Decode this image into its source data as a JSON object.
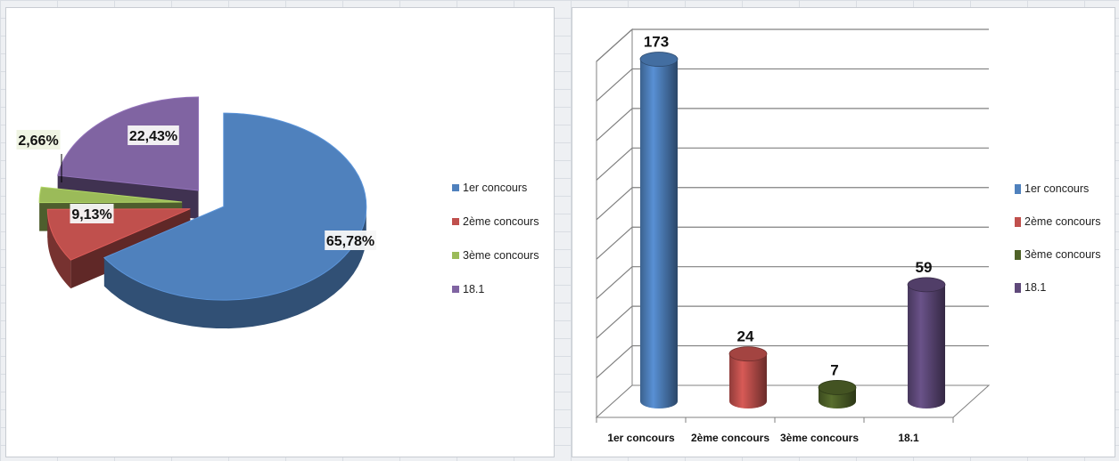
{
  "chart_data": [
    {
      "type": "pie",
      "categories": [
        "1er concours",
        "2ème concours",
        "3ème concours",
        "18.1"
      ],
      "values": [
        65.78,
        9.13,
        2.66,
        22.43
      ],
      "data_labels": [
        "65,78%",
        "9,13%",
        "2,66%",
        "22,43%"
      ],
      "colors": [
        "#4f81bd",
        "#c0504d",
        "#9bbb59",
        "#8064a2"
      ],
      "title": "",
      "legend": "right",
      "style": "3d-exploded"
    },
    {
      "type": "bar",
      "categories": [
        "1er concours",
        "2ème concours",
        "3ème concours",
        "18.1"
      ],
      "values": [
        173,
        24,
        7,
        59
      ],
      "data_labels": [
        "173",
        "24",
        "7",
        "59"
      ],
      "colors": [
        "#4f81bd",
        "#c0504d",
        "#4f6228",
        "#5f497a"
      ],
      "title": "",
      "xlabel": "",
      "ylabel": "",
      "ylim": [
        0,
        180
      ],
      "grid": true,
      "legend": "right",
      "style": "3d-cylinder"
    }
  ]
}
